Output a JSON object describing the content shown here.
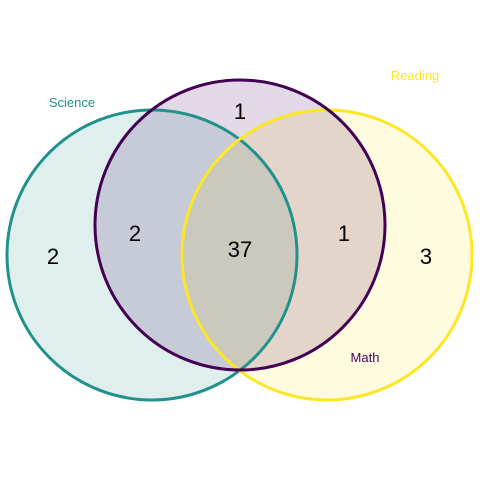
{
  "sets": [
    {
      "key": "science",
      "label": "Science",
      "color": "#21918c"
    },
    {
      "key": "math",
      "label": "Math",
      "color": "#440154"
    },
    {
      "key": "reading",
      "label": "Reading",
      "color": "#fde725"
    }
  ],
  "regions": {
    "science_only": "2",
    "math_only": "1",
    "reading_only": "3",
    "science_math": "2",
    "math_reading": "1",
    "all_three": "37"
  },
  "style": {
    "fill_opacity": 0.15,
    "stroke_width": 3
  }
}
